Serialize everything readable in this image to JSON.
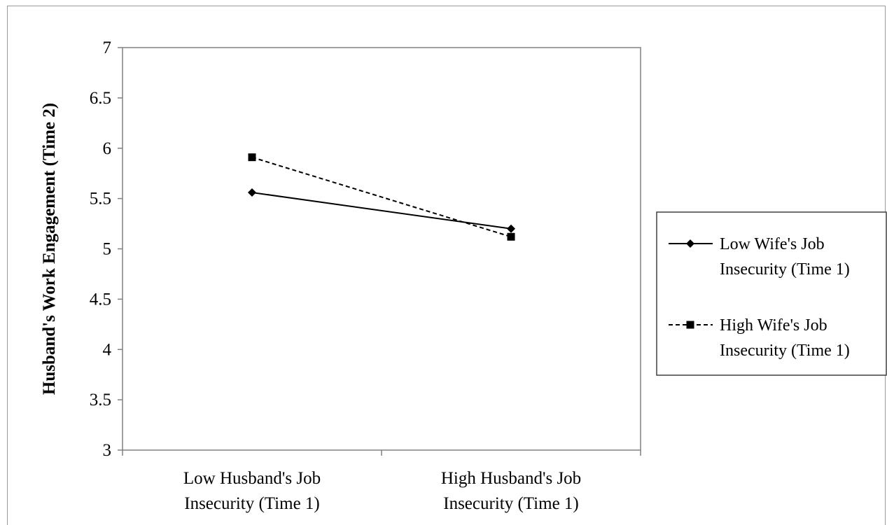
{
  "chart_data": {
    "type": "line",
    "title": "",
    "ylabel": "Husband's Work Engagement (Time 2)",
    "xlabel": "",
    "ylim": [
      3,
      7
    ],
    "yticks": [
      "3",
      "3.5",
      "4",
      "4.5",
      "5",
      "5.5",
      "6",
      "6.5",
      "7"
    ],
    "categories": [
      [
        "Low Husband's Job",
        "Insecurity (Time 1)"
      ],
      [
        "High Husband's Job",
        "Insecurity (Time 1)"
      ]
    ],
    "series": [
      {
        "name_lines": [
          "Low Wife's Job",
          "Insecurity (Time 1)"
        ],
        "values": [
          5.56,
          5.2
        ],
        "marker": "diamond",
        "dash": "solid"
      },
      {
        "name_lines": [
          "High Wife's Job",
          "Insecurity (Time 1)"
        ],
        "values": [
          5.91,
          5.12
        ],
        "marker": "square",
        "dash": "dashed"
      }
    ],
    "grid": false,
    "legend_position": "right"
  }
}
